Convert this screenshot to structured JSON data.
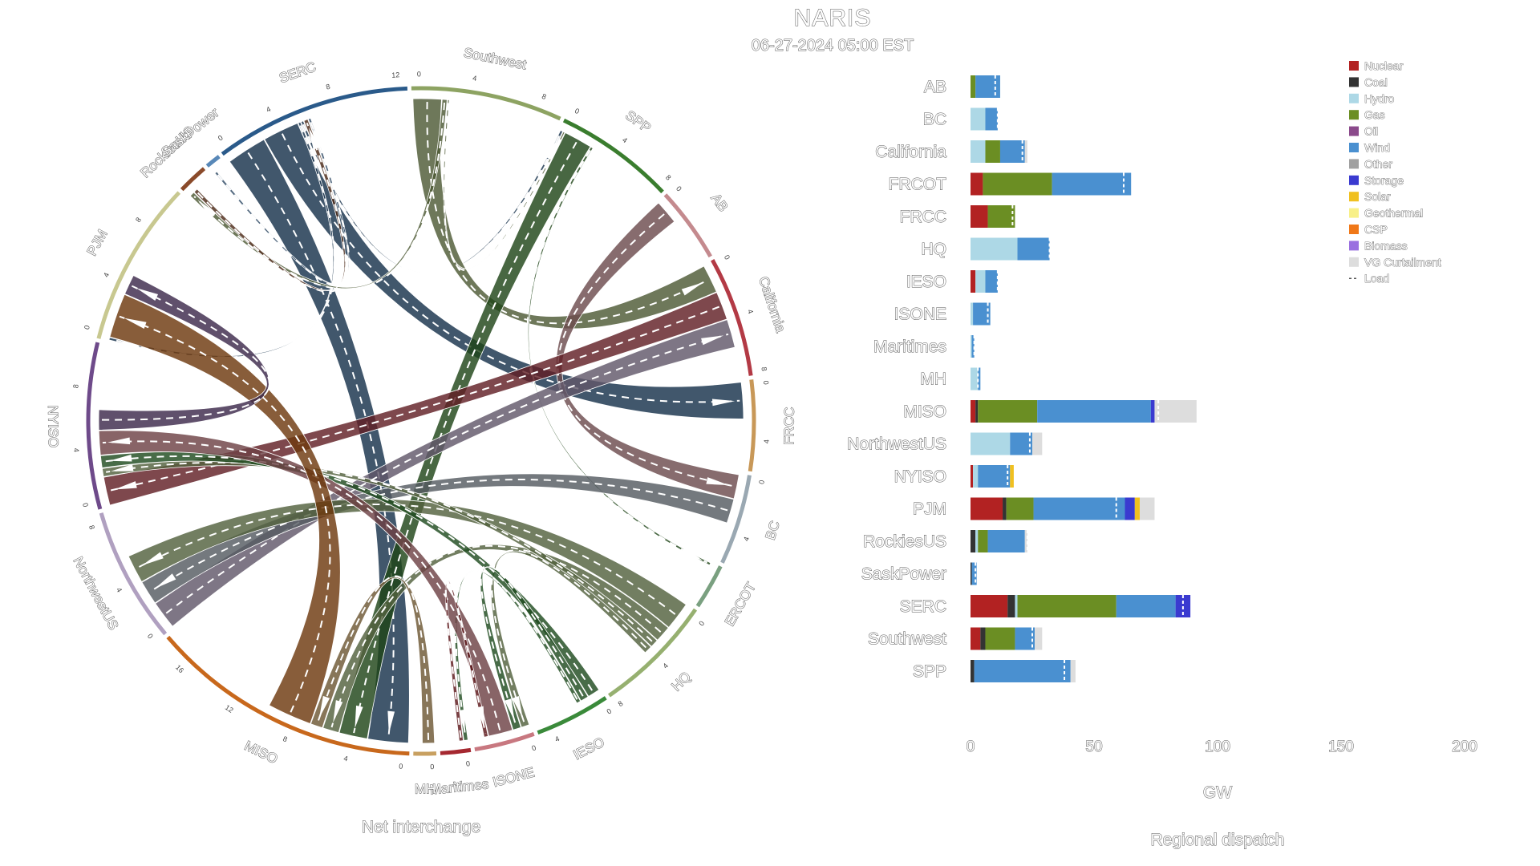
{
  "title": "NARIS",
  "subtitle": "06-27-2024 05:00 EST",
  "chart_data": [
    {
      "type": "chord",
      "xlabel": "Net interchange",
      "regions": [
        {
          "name": "Southwest",
          "color": "#8da362",
          "size": 10
        },
        {
          "name": "SPP",
          "color": "#3a7d2e",
          "size": 8
        },
        {
          "name": "AB",
          "color": "#c48a8e",
          "size": 5
        },
        {
          "name": "California",
          "color": "#b33a45",
          "size": 8
        },
        {
          "name": "FRCC",
          "color": "#c89858",
          "size": 6
        },
        {
          "name": "BC",
          "color": "#9aa8b2",
          "size": 6
        },
        {
          "name": "ERCOT",
          "color": "#7aa080",
          "size": 3
        },
        {
          "name": "HQ",
          "color": "#96b070",
          "size": 8
        },
        {
          "name": "IESO",
          "color": "#3a8a3a",
          "size": 5
        },
        {
          "name": "ISONE",
          "color": "#c87880",
          "size": 4
        },
        {
          "name": "Maritimes",
          "color": "#a52830",
          "size": 2
        },
        {
          "name": "MH",
          "color": "#c8a060",
          "size": 1.5
        },
        {
          "name": "MISO",
          "color": "#c8681c",
          "size": 18
        },
        {
          "name": "NorthwestUS",
          "color": "#b0a0c0",
          "size": 9
        },
        {
          "name": "NYISO",
          "color": "#6e4a8a",
          "size": 11
        },
        {
          "name": "PJM",
          "color": "#c8c890",
          "size": 11
        },
        {
          "name": "RockiesUS",
          "color": "#8a4a2a",
          "size": 2
        },
        {
          "name": "SaskPower",
          "color": "#5888b8",
          "size": 1
        },
        {
          "name": "SERC",
          "color": "#2a5a8a",
          "size": 13
        }
      ],
      "tick_labels": [
        {
          "label": "0",
          "region": "Southwest",
          "offset": 0.5
        },
        {
          "label": "4",
          "region": "Southwest",
          "offset": 4
        },
        {
          "label": "8",
          "region": "Southwest",
          "offset": 8.5
        },
        {
          "label": "0",
          "region": "SPP",
          "offset": 0.5
        },
        {
          "label": "4",
          "region": "SPP",
          "offset": 4
        },
        {
          "label": "8",
          "region": "SPP",
          "offset": 7.6
        },
        {
          "label": "0",
          "region": "AB",
          "offset": 0.3
        },
        {
          "label": "0",
          "region": "California",
          "offset": 0.3
        },
        {
          "label": "4",
          "region": "California",
          "offset": 4
        },
        {
          "label": "8",
          "region": "California",
          "offset": 7.7
        },
        {
          "label": "0",
          "region": "FRCC",
          "offset": 0.3
        },
        {
          "label": "4",
          "region": "FRCC",
          "offset": 4
        },
        {
          "label": "0",
          "region": "BC",
          "offset": 0.3
        },
        {
          "label": "4",
          "region": "BC",
          "offset": 4
        },
        {
          "label": "0",
          "region": "HQ",
          "offset": 0.5
        },
        {
          "label": "4",
          "region": "HQ",
          "offset": 4
        },
        {
          "label": "8",
          "region": "HQ",
          "offset": 7.7
        },
        {
          "label": "0",
          "region": "IESO",
          "offset": 0.3
        },
        {
          "label": "4",
          "region": "IESO",
          "offset": 4
        },
        {
          "label": "0",
          "region": "ISONE",
          "offset": 0.3
        },
        {
          "label": "0",
          "region": "Maritimes",
          "offset": 0.3
        },
        {
          "label": "0",
          "region": "MH",
          "offset": 0.3
        },
        {
          "label": "0",
          "region": "MISO",
          "offset": 0.5
        },
        {
          "label": "4",
          "region": "MISO",
          "offset": 4
        },
        {
          "label": "8",
          "region": "MISO",
          "offset": 8
        },
        {
          "label": "12",
          "region": "MISO",
          "offset": 12
        },
        {
          "label": "16",
          "region": "MISO",
          "offset": 16
        },
        {
          "label": "0",
          "region": "NorthwestUS",
          "offset": 0.5
        },
        {
          "label": "4",
          "region": "NorthwestUS",
          "offset": 4
        },
        {
          "label": "8",
          "region": "NorthwestUS",
          "offset": 8.3
        },
        {
          "label": "0",
          "region": "NYISO",
          "offset": 0.5
        },
        {
          "label": "4",
          "region": "NYISO",
          "offset": 4
        },
        {
          "label": "8",
          "region": "NYISO",
          "offset": 8
        },
        {
          "label": "0",
          "region": "PJM",
          "offset": 0.5
        },
        {
          "label": "4",
          "region": "PJM",
          "offset": 4
        },
        {
          "label": "8",
          "region": "PJM",
          "offset": 8
        },
        {
          "label": "0",
          "region": "SERC",
          "offset": 0.5
        },
        {
          "label": "4",
          "region": "SERC",
          "offset": 4
        },
        {
          "label": "8",
          "region": "SERC",
          "offset": 8
        },
        {
          "label": "12",
          "region": "SERC",
          "offset": 12.3
        }
      ],
      "flows": [
        {
          "from": "SERC",
          "to": "MISO",
          "value": 5.0
        },
        {
          "from": "SERC",
          "to": "FRCC",
          "value": 4.5
        },
        {
          "from": "SERC",
          "to": "PJM",
          "value": 0.3
        },
        {
          "from": "SERC",
          "to": "SPP",
          "value": 0.3
        },
        {
          "from": "Southwest",
          "to": "California",
          "value": 3.5
        },
        {
          "from": "Southwest",
          "to": "RockiesUS",
          "value": 0.6
        },
        {
          "from": "Southwest",
          "to": "SPP",
          "value": 0.2
        },
        {
          "from": "SPP",
          "to": "MISO",
          "value": 3.5
        },
        {
          "from": "SPP",
          "to": "ERCOT",
          "value": 0.3
        },
        {
          "from": "AB",
          "to": "BC",
          "value": 3.0
        },
        {
          "from": "California",
          "to": "NYISO",
          "value": 3.5
        },
        {
          "from": "NorthwestUS",
          "to": "California",
          "value": 3.5
        },
        {
          "from": "BC",
          "to": "NorthwestUS",
          "value": 3.0
        },
        {
          "from": "HQ",
          "to": "NorthwestUS",
          "value": 3.5
        },
        {
          "from": "HQ",
          "to": "MISO",
          "value": 2.0
        },
        {
          "from": "HQ",
          "to": "NYISO",
          "value": 1.0
        },
        {
          "from": "HQ",
          "to": "ISONE",
          "value": 1.0
        },
        {
          "from": "IESO",
          "to": "NYISO",
          "value": 1.5
        },
        {
          "from": "IESO",
          "to": "ISONE",
          "value": 1.0
        },
        {
          "from": "IESO",
          "to": "Maritimes",
          "value": 0.5
        },
        {
          "from": "ISONE",
          "to": "NYISO",
          "value": 3.0
        },
        {
          "from": "Maritimes",
          "to": "ISONE",
          "value": 0.5
        },
        {
          "from": "MH",
          "to": "MISO",
          "value": 1.5
        },
        {
          "from": "MISO",
          "to": "PJM",
          "value": 5.5
        },
        {
          "from": "NYISO",
          "to": "PJM",
          "value": 2.5
        },
        {
          "from": "RockiesUS",
          "to": "SERC",
          "value": 0.5
        },
        {
          "from": "SaskPower",
          "to": "SERC",
          "value": 0.3
        }
      ]
    },
    {
      "type": "bar",
      "orientation": "horizontal",
      "stacked": true,
      "xlabel": "GW",
      "ylabel": "Regional dispatch",
      "xlim": [
        0,
        200
      ],
      "xticks": [
        0,
        50,
        100,
        150,
        200
      ],
      "grid": false,
      "legend_position": "top-right",
      "categories": [
        "AB",
        "BC",
        "California",
        "FRCOT",
        "FRCC",
        "HQ",
        "IESO",
        "ISONE",
        "Maritimes",
        "MH",
        "MISO",
        "NorthwestUS",
        "NYISO",
        "PJM",
        "RockiesUS",
        "SaskPower",
        "SERC",
        "Southwest",
        "SPP"
      ],
      "series": [
        {
          "name": "Nuclear",
          "color": "#b22222",
          "values": [
            0,
            0,
            0,
            5,
            7,
            0,
            2,
            0,
            0,
            0,
            2,
            0,
            1,
            13,
            0,
            0,
            15,
            4,
            0
          ]
        },
        {
          "name": "Coal",
          "color": "#333333",
          "values": [
            0,
            0,
            0,
            0,
            0,
            0,
            0,
            0,
            0,
            0,
            1,
            0,
            0,
            1.5,
            2,
            0.5,
            3,
            2,
            1.5
          ]
        },
        {
          "name": "Hydro",
          "color": "#add8e6",
          "values": [
            0,
            6,
            6,
            0,
            0,
            19,
            4,
            1,
            0.5,
            3,
            0,
            16,
            2,
            0,
            1,
            0,
            1,
            0,
            0
          ]
        },
        {
          "name": "Gas",
          "color": "#6b8e23",
          "values": [
            2,
            0,
            6,
            28,
            11,
            0,
            0,
            0,
            0,
            0,
            24,
            0,
            0,
            11,
            4,
            0,
            40,
            12,
            0
          ]
        },
        {
          "name": "Oil",
          "color": "#8b4a8b",
          "values": [
            0,
            0,
            0,
            0,
            0,
            0,
            0,
            0,
            0,
            0,
            0,
            0,
            0,
            0,
            0,
            0,
            0,
            0,
            0
          ]
        },
        {
          "name": "Wind",
          "color": "#4a90d0",
          "values": [
            10,
            5,
            10,
            32,
            0,
            13,
            5,
            7,
            1,
            1,
            46,
            9,
            13,
            37,
            15,
            2,
            24,
            8,
            39
          ]
        },
        {
          "name": "Other",
          "color": "#a0a0a0",
          "values": [
            0,
            0,
            0,
            0,
            0,
            0,
            0,
            0,
            0,
            0,
            0,
            0,
            0,
            0,
            0,
            0,
            0,
            0,
            0
          ]
        },
        {
          "name": "Storage",
          "color": "#3a3ad0",
          "values": [
            0,
            0,
            0,
            0,
            0,
            0,
            0,
            0,
            0,
            0,
            1.5,
            0,
            0,
            4,
            0,
            0,
            6,
            0,
            0
          ]
        },
        {
          "name": "Solar",
          "color": "#f0c020",
          "values": [
            0,
            0,
            0,
            0,
            0,
            0,
            0,
            0,
            0,
            0,
            0,
            0,
            1.5,
            2,
            0,
            0,
            0,
            0,
            0
          ]
        },
        {
          "name": "Geothermal",
          "color": "#f8f088",
          "values": [
            0,
            0,
            0,
            0,
            0,
            0,
            0,
            0,
            0,
            0,
            0,
            0,
            0,
            0,
            0,
            0,
            0,
            0,
            0
          ]
        },
        {
          "name": "CSP",
          "color": "#f07818",
          "values": [
            0,
            0,
            0,
            0,
            0,
            0,
            0,
            0,
            0,
            0,
            0,
            0,
            0,
            0,
            0,
            0,
            0,
            0,
            0
          ]
        },
        {
          "name": "Biomass",
          "color": "#9a70e0",
          "values": [
            0,
            0,
            0,
            0,
            0,
            0,
            0,
            0,
            0,
            0,
            0,
            0,
            0,
            0,
            0,
            0,
            0,
            0,
            0
          ]
        },
        {
          "name": "VG Curtailment",
          "color": "#dddddd",
          "values": [
            0,
            0,
            1,
            0,
            0,
            0,
            0,
            0,
            0,
            0,
            17,
            4,
            0,
            6,
            1,
            0,
            0,
            3,
            2
          ]
        }
      ],
      "load": {
        "name": "Load",
        "values": [
          10,
          11,
          21,
          62,
          17,
          32,
          11,
          7,
          1.5,
          3,
          76,
          24,
          15,
          59,
          23,
          2,
          86,
          25,
          38
        ]
      }
    }
  ]
}
